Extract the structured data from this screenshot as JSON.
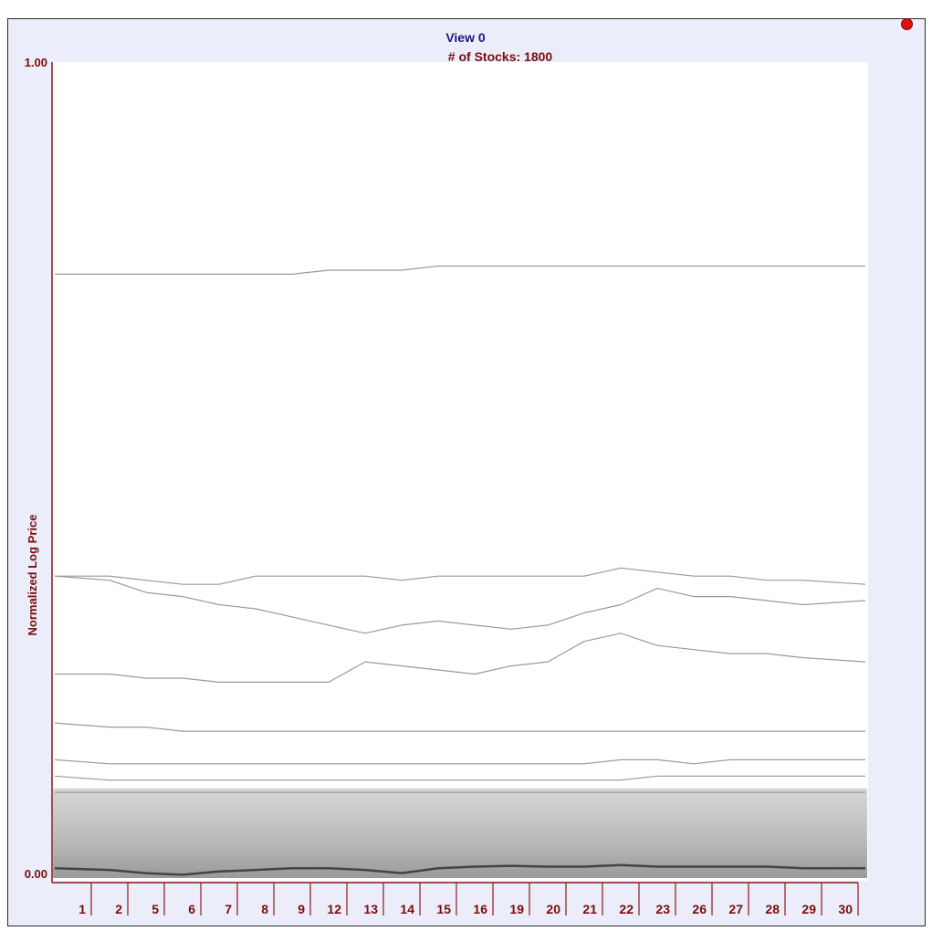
{
  "view_title": "View 0",
  "stock_count_label": "# of Stocks: 1800",
  "colors": {
    "title": "#1a1a7a",
    "label": "#7a0c0c",
    "axis": "#8b1a1a",
    "panel": "#ecedfa",
    "series": "#9a9a9a",
    "dense": "#444444",
    "indicator": "#e01010"
  },
  "chart_data": {
    "type": "line",
    "title": "View 0",
    "subtitle": "# of Stocks: 1800",
    "xlabel": "",
    "ylabel": "Normalized Log Price",
    "ylim": [
      0,
      1
    ],
    "y_tick_labels": [
      "0.00",
      "1.00"
    ],
    "categories": [
      "1",
      "2",
      "5",
      "6",
      "7",
      "8",
      "9",
      "12",
      "13",
      "14",
      "15",
      "16",
      "19",
      "20",
      "21",
      "22",
      "23",
      "26",
      "27",
      "28",
      "29",
      "30"
    ],
    "series": [
      {
        "values": [
          0.74,
          0.74,
          0.74,
          0.74,
          0.74,
          0.74,
          0.74,
          0.745,
          0.745,
          0.745,
          0.75,
          0.75,
          0.75,
          0.75,
          0.75,
          0.75,
          0.75,
          0.75,
          0.75,
          0.75,
          0.75,
          0.75
        ]
      },
      {
        "values": [
          0.37,
          0.37,
          0.365,
          0.36,
          0.36,
          0.37,
          0.37,
          0.37,
          0.37,
          0.365,
          0.37,
          0.37,
          0.37,
          0.37,
          0.37,
          0.38,
          0.375,
          0.37,
          0.37,
          0.365,
          0.365,
          0.36
        ]
      },
      {
        "values": [
          0.37,
          0.365,
          0.35,
          0.345,
          0.335,
          0.33,
          0.32,
          0.31,
          0.3,
          0.31,
          0.315,
          0.31,
          0.305,
          0.31,
          0.325,
          0.335,
          0.355,
          0.345,
          0.345,
          0.34,
          0.335,
          0.34
        ]
      },
      {
        "values": [
          0.25,
          0.25,
          0.245,
          0.245,
          0.24,
          0.24,
          0.24,
          0.24,
          0.265,
          0.26,
          0.255,
          0.25,
          0.26,
          0.265,
          0.29,
          0.3,
          0.285,
          0.28,
          0.275,
          0.275,
          0.27,
          0.265
        ]
      },
      {
        "values": [
          0.19,
          0.185,
          0.185,
          0.18,
          0.18,
          0.18,
          0.18,
          0.18,
          0.18,
          0.18,
          0.18,
          0.18,
          0.18,
          0.18,
          0.18,
          0.18,
          0.18,
          0.18,
          0.18,
          0.18,
          0.18,
          0.18
        ]
      },
      {
        "values": [
          0.145,
          0.14,
          0.14,
          0.14,
          0.14,
          0.14,
          0.14,
          0.14,
          0.14,
          0.14,
          0.14,
          0.14,
          0.14,
          0.14,
          0.14,
          0.145,
          0.145,
          0.14,
          0.145,
          0.145,
          0.145,
          0.145
        ]
      },
      {
        "values": [
          0.125,
          0.12,
          0.12,
          0.12,
          0.12,
          0.12,
          0.12,
          0.12,
          0.12,
          0.12,
          0.12,
          0.12,
          0.12,
          0.12,
          0.12,
          0.12,
          0.125,
          0.125,
          0.125,
          0.125,
          0.125,
          0.125
        ]
      },
      {
        "values": [
          0.105,
          0.105,
          0.105,
          0.105,
          0.105,
          0.105,
          0.105,
          0.105,
          0.105,
          0.105,
          0.105,
          0.105,
          0.105,
          0.105,
          0.105,
          0.105,
          0.105,
          0.105,
          0.105,
          0.105,
          0.105,
          0.105
        ]
      },
      {
        "values": [
          0.012,
          0.01,
          0.006,
          0.004,
          0.008,
          0.01,
          0.012,
          0.012,
          0.01,
          0.006,
          0.012,
          0.014,
          0.015,
          0.014,
          0.014,
          0.016,
          0.014,
          0.014,
          0.014,
          0.014,
          0.012,
          0.012
        ]
      }
    ],
    "dense_band": {
      "low": 0.0,
      "high": 0.11
    },
    "grid": false,
    "legend": "none"
  }
}
